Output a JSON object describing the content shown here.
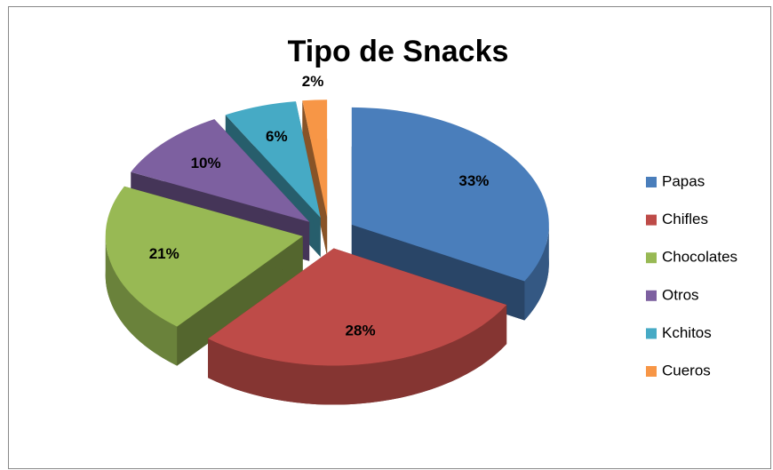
{
  "chart_data": {
    "type": "pie",
    "title": "Tipo de Snacks",
    "categories": [
      "Papas",
      "Chifles",
      "Chocolates",
      "Otros",
      "Kchitos",
      "Cueros"
    ],
    "values": [
      33,
      28,
      21,
      10,
      6,
      2
    ],
    "value_labels": [
      "33%",
      "28%",
      "21%",
      "10%",
      "6%",
      "2%"
    ],
    "colors": [
      "#4a7ebb",
      "#be4b48",
      "#98b954",
      "#7d60a0",
      "#46aac5",
      "#f79646"
    ],
    "legend": "right"
  }
}
